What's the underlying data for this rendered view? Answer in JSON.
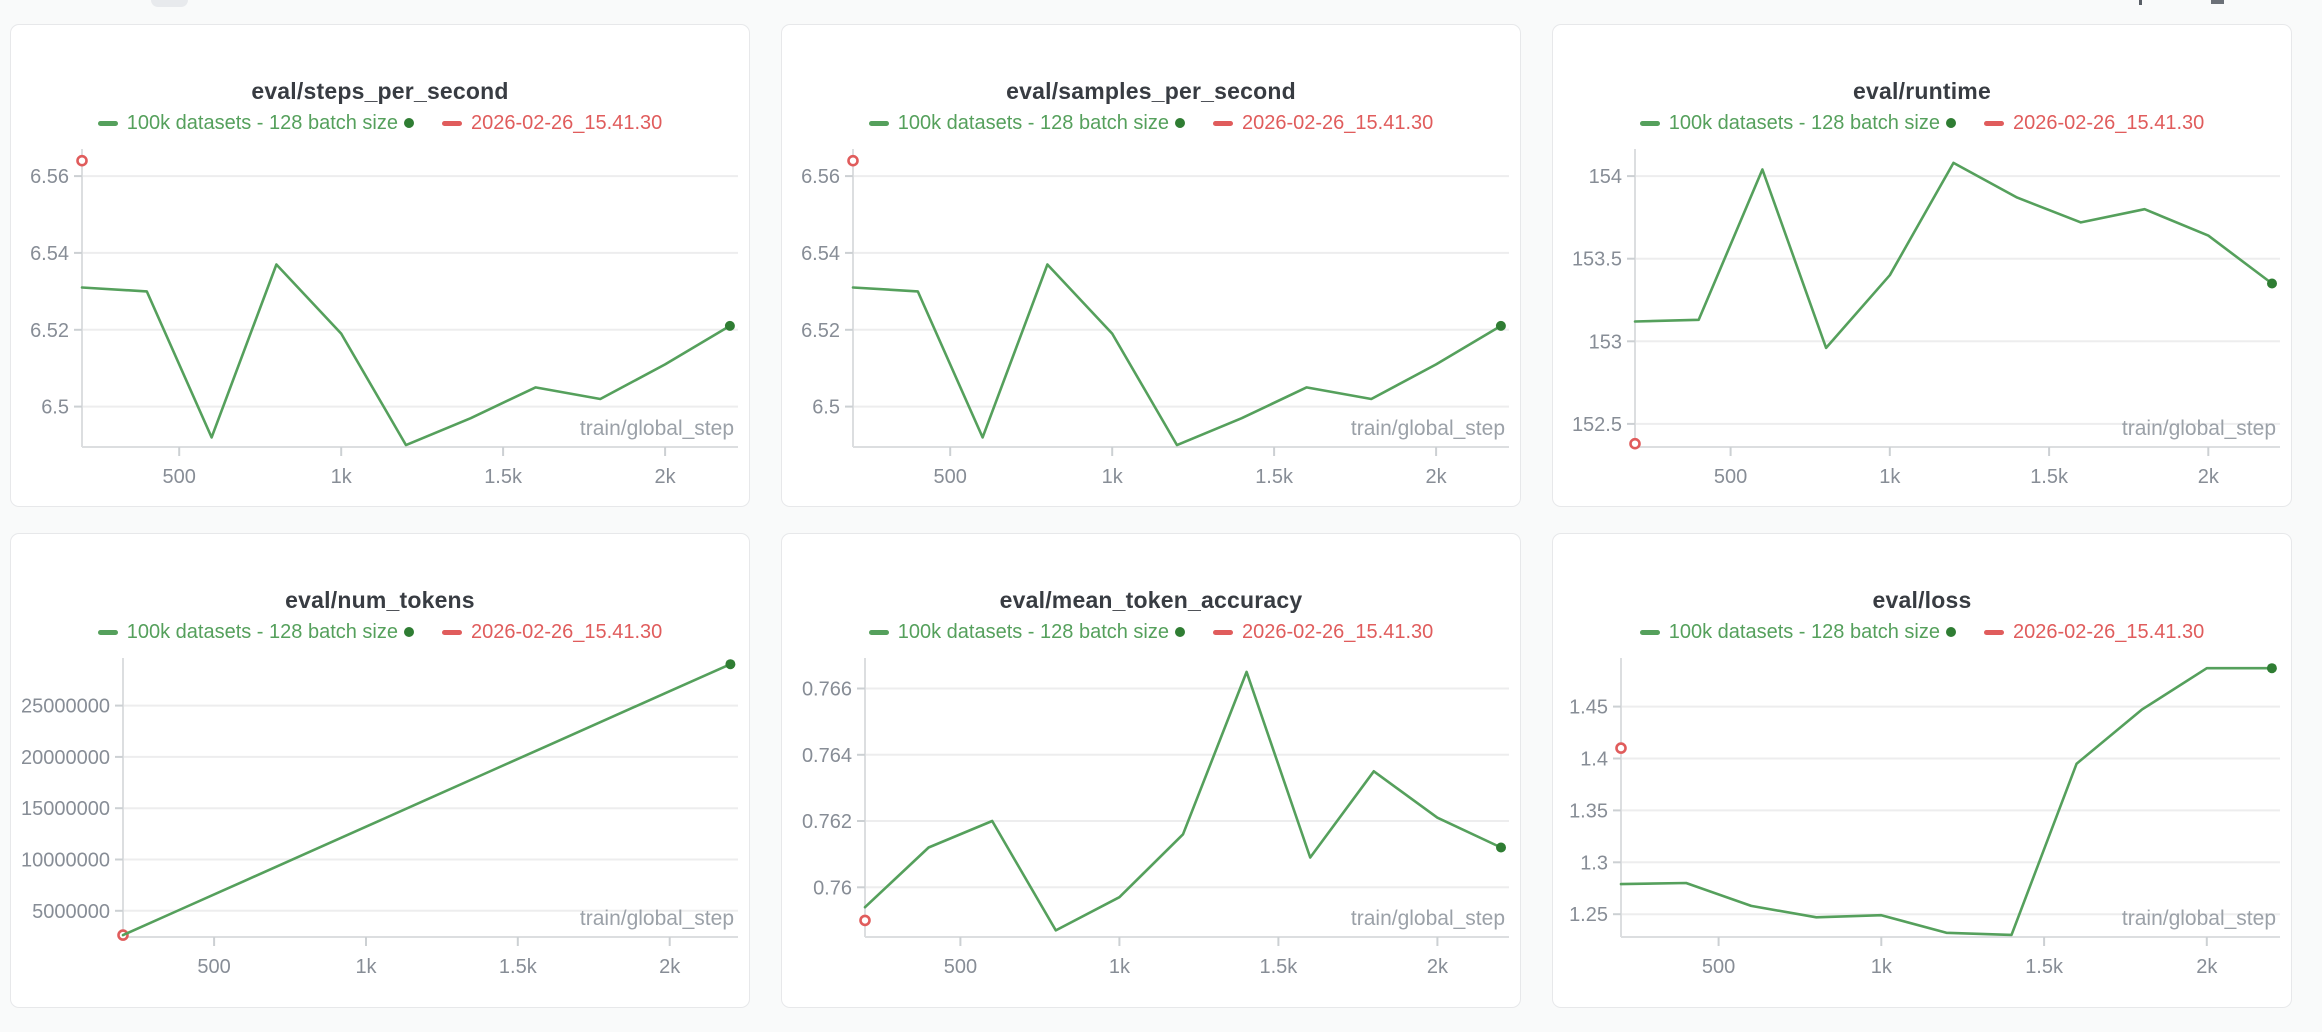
{
  "colors": {
    "green_line": "#55a05c",
    "green_dark_dot": "#2f7d33",
    "red": "#e05c5c",
    "title_text": "#383c42",
    "tick_text": "#878d96",
    "axis_label_text": "#9ba1a8",
    "gridline": "#ededee",
    "axis_line": "#dcdee0",
    "tick_mark": "#ccd0d3",
    "card_background": "#ffffff",
    "card_border": "#e7e8ea",
    "page_background": "#f9fafa"
  },
  "legend": {
    "series1_label": "100k datasets - 128 batch size",
    "series2_label": "2026-02-26_15.41.30"
  },
  "chart_data": [
    {
      "type": "line",
      "title": "eval/steps_per_second",
      "xlabel": "train/global_step",
      "x": [
        200,
        400,
        600,
        800,
        1000,
        1200,
        1400,
        1600,
        1800,
        2000,
        2200
      ],
      "series": [
        {
          "name": "100k datasets - 128 batch size",
          "color": "#55a05c",
          "values": [
            6.531,
            6.53,
            6.492,
            6.537,
            6.519,
            6.49,
            6.497,
            6.505,
            6.502,
            6.511,
            6.521
          ]
        },
        {
          "name": "2026-02-26_15.41.30",
          "color": "#e05c5c",
          "x": [
            200
          ],
          "values": [
            6.564
          ]
        }
      ],
      "ylim": [
        6.4895,
        6.566
      ],
      "yticks": [
        6.5,
        6.52,
        6.54,
        6.56
      ],
      "ytick_labels": [
        "6.5",
        "6.52",
        "6.54",
        "6.56"
      ],
      "xlim": [
        200,
        2225
      ],
      "xticks": [
        500,
        1000,
        1500,
        2000
      ],
      "xtick_labels": [
        "500",
        "1k",
        "1.5k",
        "2k"
      ],
      "grid": "horizontal",
      "legend_position": "top"
    },
    {
      "type": "line",
      "title": "eval/samples_per_second",
      "xlabel": "train/global_step",
      "x": [
        200,
        400,
        600,
        800,
        1000,
        1200,
        1400,
        1600,
        1800,
        2000,
        2200
      ],
      "series": [
        {
          "name": "100k datasets - 128 batch size",
          "color": "#55a05c",
          "values": [
            6.531,
            6.53,
            6.492,
            6.537,
            6.519,
            6.49,
            6.497,
            6.505,
            6.502,
            6.511,
            6.521
          ]
        },
        {
          "name": "2026-02-26_15.41.30",
          "color": "#e05c5c",
          "x": [
            200
          ],
          "values": [
            6.564
          ]
        }
      ],
      "ylim": [
        6.4895,
        6.566
      ],
      "yticks": [
        6.5,
        6.52,
        6.54,
        6.56
      ],
      "ytick_labels": [
        "6.5",
        "6.52",
        "6.54",
        "6.56"
      ],
      "xlim": [
        200,
        2225
      ],
      "xticks": [
        500,
        1000,
        1500,
        2000
      ],
      "xtick_labels": [
        "500",
        "1k",
        "1.5k",
        "2k"
      ],
      "grid": "horizontal",
      "legend_position": "top"
    },
    {
      "type": "line",
      "title": "eval/runtime",
      "xlabel": "train/global_step",
      "x": [
        200,
        400,
        600,
        800,
        1000,
        1200,
        1400,
        1600,
        1800,
        2000,
        2200
      ],
      "series": [
        {
          "name": "100k datasets - 128 batch size",
          "color": "#55a05c",
          "values": [
            153.12,
            153.13,
            154.04,
            152.96,
            153.4,
            154.08,
            153.87,
            153.72,
            153.8,
            153.64,
            153.35
          ]
        },
        {
          "name": "2026-02-26_15.41.30",
          "color": "#e05c5c",
          "x": [
            200
          ],
          "values": [
            152.38
          ]
        }
      ],
      "ylim": [
        152.36,
        154.14
      ],
      "yticks": [
        152.5,
        153,
        153.5,
        154
      ],
      "ytick_labels": [
        "152.5",
        "153",
        "153.5",
        "154"
      ],
      "xlim": [
        200,
        2225
      ],
      "xticks": [
        500,
        1000,
        1500,
        2000
      ],
      "xtick_labels": [
        "500",
        "1k",
        "1.5k",
        "2k"
      ],
      "grid": "horizontal",
      "legend_position": "top"
    },
    {
      "type": "line",
      "title": "eval/num_tokens",
      "xlabel": "train/global_step",
      "x": [
        200,
        400,
        600,
        800,
        1000,
        1200,
        1400,
        1600,
        1800,
        2000,
        2200
      ],
      "series": [
        {
          "name": "100k datasets - 128 batch size",
          "color": "#55a05c",
          "values": [
            2640000,
            5280000,
            7920000,
            10560000,
            13200000,
            15840000,
            18480000,
            21120000,
            23760000,
            26400000,
            29040000
          ]
        },
        {
          "name": "2026-02-26_15.41.30",
          "color": "#e05c5c",
          "x": [
            200
          ],
          "values": [
            2640000
          ]
        }
      ],
      "ylim": [
        2450000,
        29250000
      ],
      "yticks": [
        5000000,
        10000000,
        15000000,
        20000000,
        25000000
      ],
      "ytick_labels": [
        "5000000",
        "10000000",
        "15000000",
        "20000000",
        "25000000"
      ],
      "xlim": [
        200,
        2225
      ],
      "xticks": [
        500,
        1000,
        1500,
        2000
      ],
      "xtick_labels": [
        "500",
        "1k",
        "1.5k",
        "2k"
      ],
      "grid": "horizontal",
      "legend_position": "top"
    },
    {
      "type": "line",
      "title": "eval/mean_token_accuracy",
      "xlabel": "train/global_step",
      "x": [
        200,
        400,
        600,
        800,
        1000,
        1200,
        1400,
        1600,
        1800,
        2000,
        2200
      ],
      "series": [
        {
          "name": "100k datasets - 128 batch size",
          "color": "#55a05c",
          "values": [
            0.7594,
            0.7612,
            0.762,
            0.7587,
            0.7597,
            0.7616,
            0.7665,
            0.7609,
            0.7635,
            0.7621,
            0.7612
          ]
        },
        {
          "name": "2026-02-26_15.41.30",
          "color": "#e05c5c",
          "x": [
            200
          ],
          "values": [
            0.759
          ]
        }
      ],
      "ylim": [
        0.7585,
        0.7668
      ],
      "yticks": [
        0.76,
        0.762,
        0.764,
        0.766
      ],
      "ytick_labels": [
        "0.76",
        "0.762",
        "0.764",
        "0.766"
      ],
      "xlim": [
        200,
        2225
      ],
      "xticks": [
        500,
        1000,
        1500,
        2000
      ],
      "xtick_labels": [
        "500",
        "1k",
        "1.5k",
        "2k"
      ],
      "grid": "horizontal",
      "legend_position": "top"
    },
    {
      "type": "line",
      "title": "eval/loss",
      "xlabel": "train/global_step",
      "x": [
        200,
        400,
        600,
        800,
        1000,
        1200,
        1400,
        1600,
        1800,
        2000,
        2200
      ],
      "series": [
        {
          "name": "100k datasets - 128 batch size",
          "color": "#55a05c",
          "values": [
            1.279,
            1.28,
            1.258,
            1.247,
            1.249,
            1.232,
            1.23,
            1.395,
            1.447,
            1.487,
            1.487
          ]
        },
        {
          "name": "2026-02-26_15.41.30",
          "color": "#e05c5c",
          "x": [
            200
          ],
          "values": [
            1.41
          ]
        }
      ],
      "ylim": [
        1.228,
        1.493
      ],
      "yticks": [
        1.25,
        1.3,
        1.35,
        1.4,
        1.45
      ],
      "ytick_labels": [
        "1.25",
        "1.3",
        "1.35",
        "1.4",
        "1.45"
      ],
      "xlim": [
        200,
        2225
      ],
      "xticks": [
        500,
        1000,
        1500,
        2000
      ],
      "xtick_labels": [
        "500",
        "1k",
        "1.5k",
        "2k"
      ],
      "grid": "horizontal",
      "legend_position": "top"
    }
  ]
}
